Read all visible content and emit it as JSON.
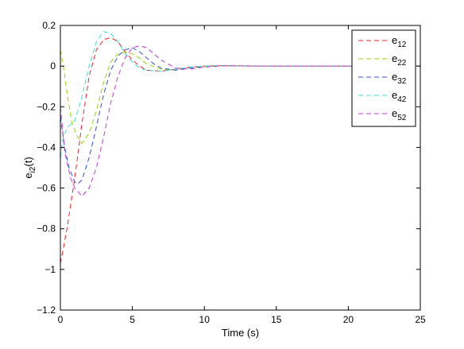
{
  "chart_data": {
    "type": "line",
    "title": "",
    "xlabel": "Time (s)",
    "ylabel": {
      "base": "e",
      "sub": "i2",
      "suffix": "(t)"
    },
    "xlim": [
      0,
      25
    ],
    "ylim": [
      -1.2,
      0.2
    ],
    "xticks": [
      0,
      5,
      10,
      15,
      20,
      25
    ],
    "yticks": [
      -1.2,
      -1,
      -0.8,
      -0.6,
      -0.4,
      -0.2,
      0,
      0.2
    ],
    "xtick_labels": [
      "0",
      "5",
      "10",
      "15",
      "20",
      "25"
    ],
    "ytick_labels": [
      "−1.2",
      "−1",
      "−0.8",
      "−0.6",
      "−0.4",
      "−0.2",
      "0",
      "0.2"
    ],
    "grid": false,
    "legend_position": "top-right",
    "line_style": "dashed",
    "series": [
      {
        "name": "e12",
        "label_base": "e",
        "label_sub": "12",
        "color": "#e8262a",
        "x": [
          0,
          0.2,
          0.5,
          1,
          1.5,
          2,
          2.5,
          3,
          3.5,
          4,
          4.5,
          5,
          5.5,
          6,
          7,
          8,
          9,
          10,
          11,
          12,
          13,
          15,
          20,
          25
        ],
        "y": [
          -0.97,
          -0.9,
          -0.78,
          -0.55,
          -0.28,
          -0.05,
          0.08,
          0.13,
          0.14,
          0.12,
          0.07,
          0.03,
          0.0,
          -0.02,
          -0.025,
          -0.015,
          -0.005,
          0.0,
          0.002,
          0.001,
          0.0,
          0.0,
          0.0,
          0.0
        ]
      },
      {
        "name": "e22",
        "label_base": "e",
        "label_sub": "22",
        "color": "#8fd800",
        "x": [
          0,
          0.2,
          0.5,
          0.8,
          1.2,
          1.5,
          2,
          2.5,
          3,
          3.5,
          4,
          4.5,
          5,
          5.5,
          6,
          7,
          8,
          9,
          10,
          11,
          12,
          13,
          15,
          20,
          25
        ],
        "y": [
          0.08,
          0.0,
          -0.15,
          -0.28,
          -0.35,
          -0.38,
          -0.33,
          -0.22,
          -0.08,
          0.02,
          0.06,
          0.07,
          0.06,
          0.04,
          0.01,
          -0.015,
          -0.02,
          -0.01,
          -0.005,
          0.0,
          0.002,
          0.001,
          0.0,
          0.0,
          0.0
        ]
      },
      {
        "name": "e32",
        "label_base": "e",
        "label_sub": "32",
        "color": "#2f4fd8",
        "x": [
          0,
          0.3,
          0.6,
          1,
          1.2,
          1.5,
          2,
          2.5,
          3,
          3.5,
          4,
          4.5,
          5,
          5.5,
          6,
          6.5,
          7,
          8,
          9,
          10,
          11,
          12,
          13,
          15,
          20,
          25
        ],
        "y": [
          -0.25,
          -0.4,
          -0.5,
          -0.57,
          -0.58,
          -0.56,
          -0.45,
          -0.3,
          -0.14,
          -0.02,
          0.05,
          0.08,
          0.09,
          0.07,
          0.04,
          0.01,
          -0.01,
          -0.02,
          -0.01,
          0.0,
          0.002,
          0.001,
          0.0,
          0.0,
          0.0,
          0.0
        ]
      },
      {
        "name": "e42",
        "label_base": "e",
        "label_sub": "42",
        "color": "#38e0d2",
        "x": [
          0,
          0.2,
          0.5,
          0.8,
          1,
          1.5,
          2,
          2.5,
          3,
          3.5,
          4,
          4.5,
          5,
          5.5,
          6,
          7,
          8,
          9,
          10,
          11,
          12,
          13,
          15,
          20,
          25
        ],
        "y": [
          -0.45,
          -0.35,
          -0.3,
          -0.28,
          -0.27,
          -0.15,
          0.0,
          0.12,
          0.17,
          0.16,
          0.12,
          0.06,
          0.02,
          -0.01,
          -0.02,
          -0.025,
          -0.015,
          -0.005,
          0.0,
          0.002,
          0.001,
          0.0,
          0.0,
          0.0,
          0.0
        ]
      },
      {
        "name": "e52",
        "label_base": "e",
        "label_sub": "52",
        "color": "#c43ad8",
        "x": [
          0,
          0.3,
          0.7,
          1,
          1.5,
          2,
          2.5,
          3,
          3.5,
          4,
          4.5,
          5,
          5.5,
          6,
          6.5,
          7,
          8,
          9,
          10,
          11,
          12,
          13,
          15,
          20,
          25
        ],
        "y": [
          -0.2,
          -0.42,
          -0.55,
          -0.6,
          -0.64,
          -0.6,
          -0.5,
          -0.35,
          -0.18,
          -0.05,
          0.04,
          0.09,
          0.1,
          0.09,
          0.06,
          0.03,
          -0.01,
          -0.015,
          -0.005,
          0.0,
          0.002,
          0.001,
          0.0,
          0.0,
          0.0
        ]
      }
    ]
  }
}
